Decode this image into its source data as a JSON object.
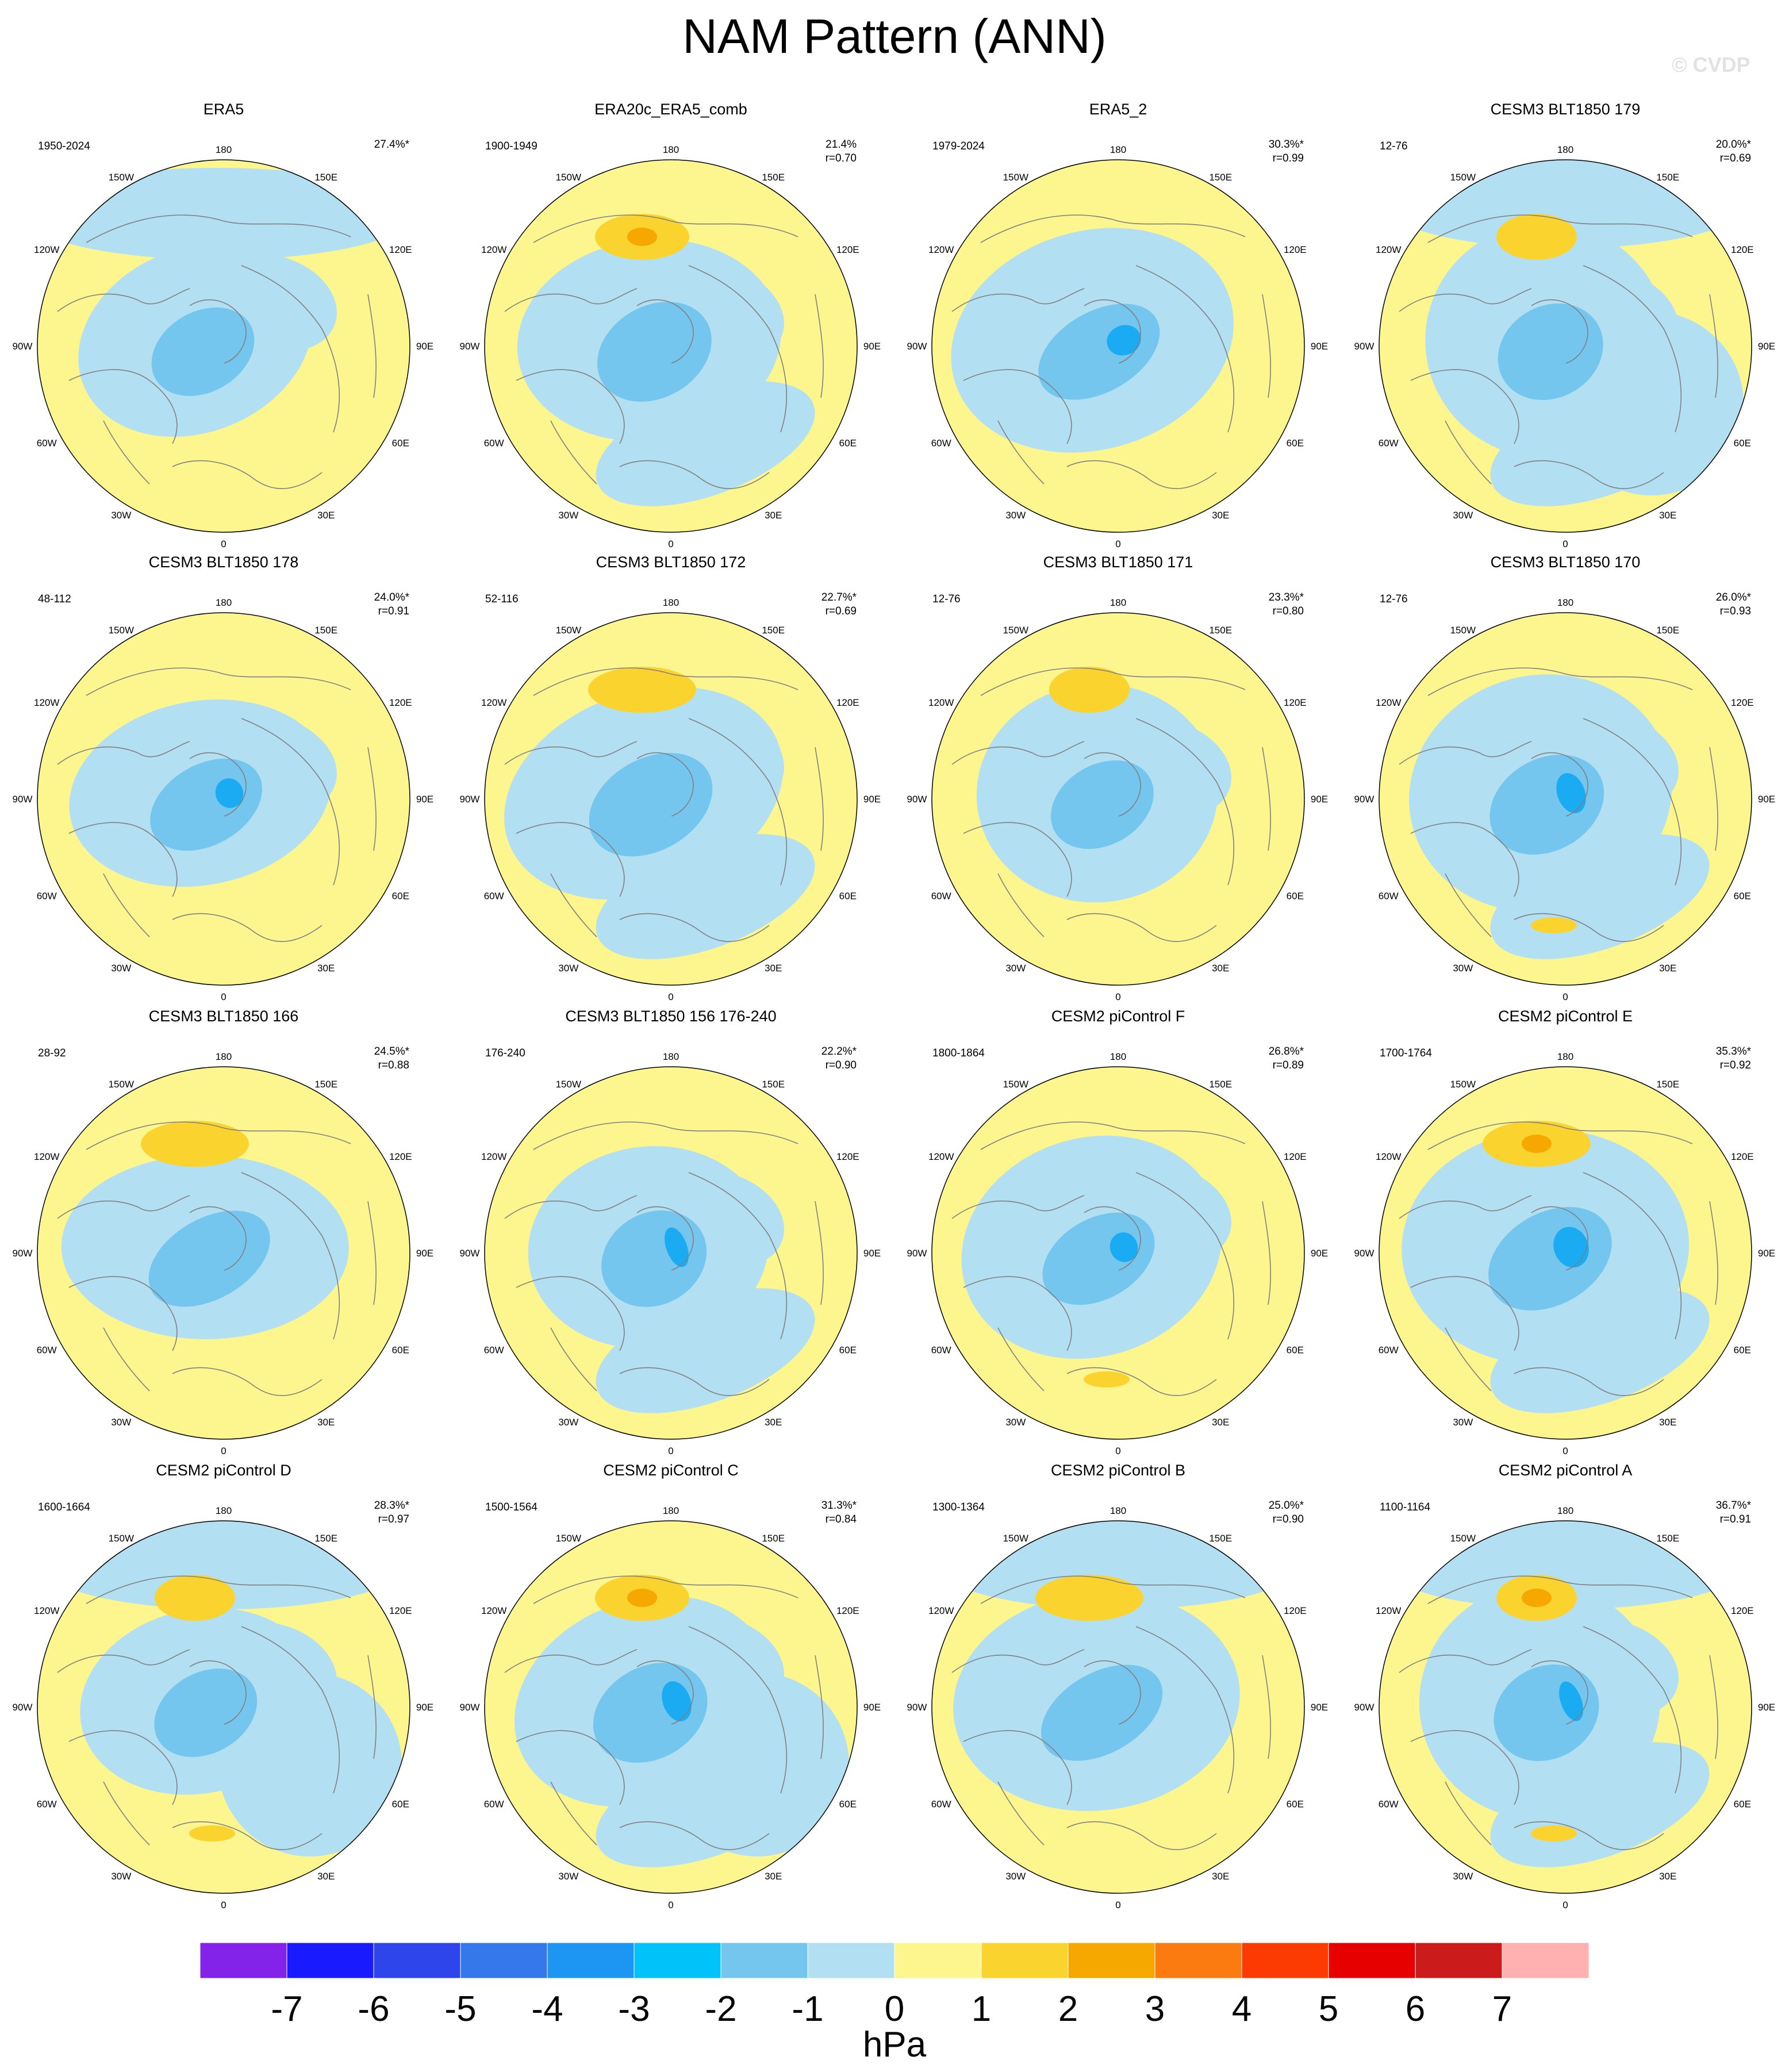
{
  "title": "NAM Pattern (ANN)",
  "watermark": "© CVDP",
  "lon_labels": [
    "180",
    "150E",
    "120E",
    "90E",
    "60E",
    "30E",
    "0",
    "30W",
    "60W",
    "90W",
    "120W",
    "150W"
  ],
  "colors": {
    "yellow": "#fdf58e",
    "light_blue": "#b3dff2",
    "mid_blue": "#74c6ee",
    "blue": "#1aabf2",
    "orange1": "#fbd32e",
    "orange2": "#f7a800",
    "coast": "#808080"
  },
  "panels": [
    {
      "title": "ERA5",
      "period": "1950-2024",
      "pct": "27.4%*",
      "r": ""
    },
    {
      "title": "ERA20c_ERA5_comb",
      "period": "1900-1949",
      "pct": "21.4%",
      "r": "r=0.70"
    },
    {
      "title": "ERA5_2",
      "period": "1979-2024",
      "pct": "30.3%*",
      "r": "r=0.99"
    },
    {
      "title": "CESM3 BLT1850 179",
      "period": "12-76",
      "pct": "20.0%*",
      "r": "r=0.69"
    },
    {
      "title": "CESM3 BLT1850 178",
      "period": "48-112",
      "pct": "24.0%*",
      "r": "r=0.91"
    },
    {
      "title": "CESM3 BLT1850 172",
      "period": "52-116",
      "pct": "22.7%*",
      "r": "r=0.69"
    },
    {
      "title": "CESM3 BLT1850 171",
      "period": "12-76",
      "pct": "23.3%*",
      "r": "r=0.80"
    },
    {
      "title": "CESM3 BLT1850 170",
      "period": "12-76",
      "pct": "26.0%*",
      "r": "r=0.93"
    },
    {
      "title": "CESM3 BLT1850 166",
      "period": "28-92",
      "pct": "24.5%*",
      "r": "r=0.88"
    },
    {
      "title": "CESM3 BLT1850 156 176-240",
      "period": "176-240",
      "pct": "22.2%*",
      "r": "r=0.90"
    },
    {
      "title": "CESM2 piControl F",
      "period": "1800-1864",
      "pct": "26.8%*",
      "r": "r=0.89"
    },
    {
      "title": "CESM2 piControl E",
      "period": "1700-1764",
      "pct": "35.3%*",
      "r": "r=0.92"
    },
    {
      "title": "CESM2 piControl D",
      "period": "1600-1664",
      "pct": "28.3%*",
      "r": "r=0.97"
    },
    {
      "title": "CESM2 piControl C",
      "period": "1500-1564",
      "pct": "31.3%*",
      "r": "r=0.84"
    },
    {
      "title": "CESM2 piControl B",
      "period": "1300-1364",
      "pct": "25.0%*",
      "r": "r=0.90"
    },
    {
      "title": "CESM2 piControl A",
      "period": "1100-1164",
      "pct": "36.7%*",
      "r": "r=0.91"
    }
  ],
  "colorbar": {
    "labels": [
      "-7",
      "-6",
      "-5",
      "-4",
      "-3",
      "-2",
      "-1",
      "0",
      "1",
      "2",
      "3",
      "4",
      "5",
      "6",
      "7"
    ],
    "colors": [
      "#8322e8",
      "#1a1aff",
      "#2d45ea",
      "#3478ec",
      "#1c96f2",
      "#01c2f9",
      "#74c6ee",
      "#b3dff2",
      "#fdf58e",
      "#fbd32e",
      "#f7a800",
      "#fb7b11",
      "#fc3b02",
      "#e60000",
      "#cc1b1b",
      "#ffb0b0"
    ],
    "units": "hPa"
  }
}
